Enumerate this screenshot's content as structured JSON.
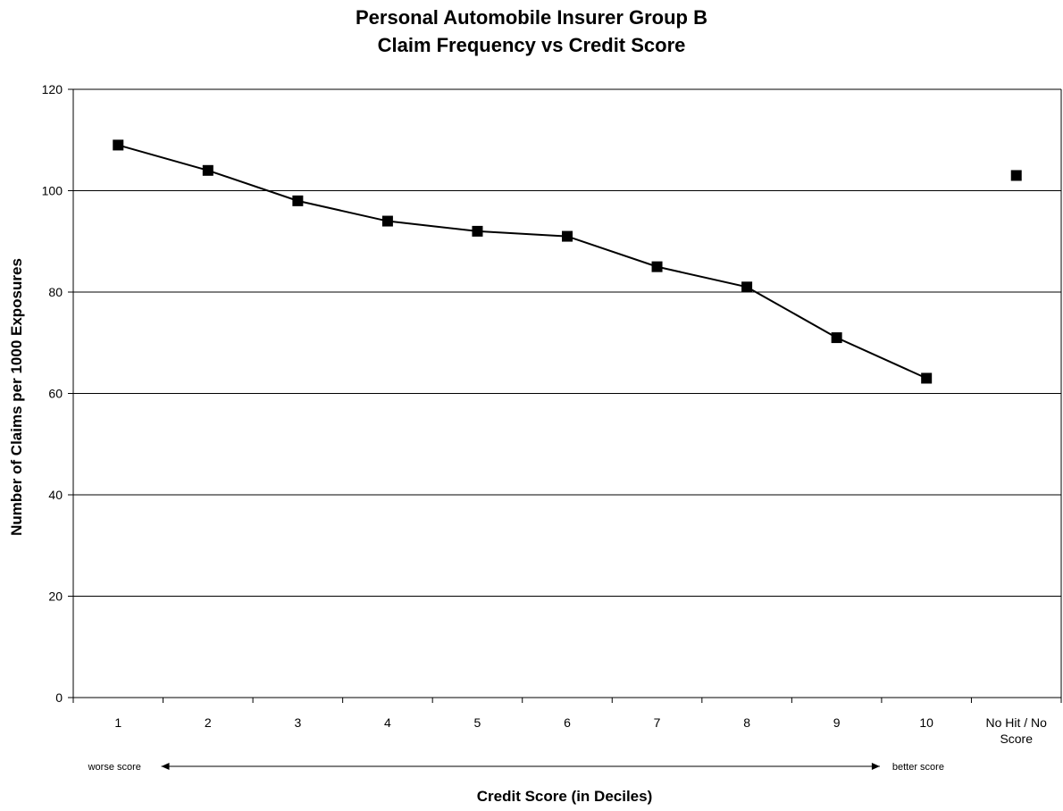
{
  "chart_data": {
    "type": "line",
    "title": "Personal Automobile Insurer Group B",
    "subtitle": "Claim Frequency vs Credit Score",
    "xlabel": "Credit Score (in Deciles)",
    "ylabel": "Number of Claims per 1000 Exposures",
    "categories": [
      "1",
      "2",
      "3",
      "4",
      "5",
      "6",
      "7",
      "8",
      "9",
      "10",
      "No Hit / No Score"
    ],
    "category_label_lines": [
      [
        "1"
      ],
      [
        "2"
      ],
      [
        "3"
      ],
      [
        "4"
      ],
      [
        "5"
      ],
      [
        "6"
      ],
      [
        "7"
      ],
      [
        "8"
      ],
      [
        "9"
      ],
      [
        "10"
      ],
      [
        "No Hit / No",
        "Score"
      ]
    ],
    "series": [
      {
        "values": [
          109,
          104,
          98,
          94,
          92,
          91,
          85,
          81,
          71,
          63,
          null
        ]
      },
      {
        "values": [
          null,
          null,
          null,
          null,
          null,
          null,
          null,
          null,
          null,
          null,
          103
        ]
      }
    ],
    "ylim": [
      0,
      120
    ],
    "yticks": [
      0,
      20,
      40,
      60,
      80,
      100,
      120
    ],
    "grid": "horizontal",
    "legend": "none",
    "annotations": {
      "left": "worse score",
      "right": "better score"
    },
    "colors": {
      "line": "#000000",
      "marker": "#000000",
      "grid": "#000000"
    }
  }
}
